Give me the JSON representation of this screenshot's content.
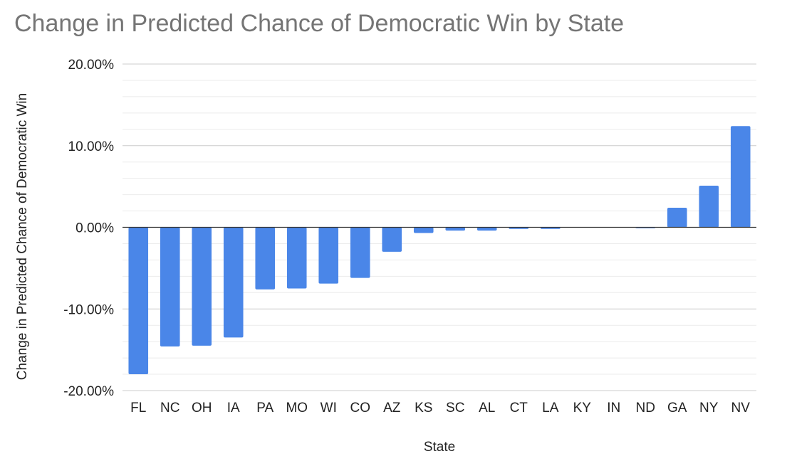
{
  "chart_data": {
    "type": "bar",
    "title": "Change in Predicted Chance of Democratic Win by State",
    "xlabel": "State",
    "ylabel": "Change in Predicted Chance of Democratic Win",
    "ylim": [
      -20,
      20
    ],
    "y_tick_values": [
      20,
      10,
      0,
      -10,
      -20
    ],
    "y_tick_labels": [
      "20.00%",
      "10.00%",
      "0.00%",
      "-10.00%",
      "-20.00%"
    ],
    "minor_gridlines": true,
    "grid": true,
    "legend": "none",
    "bar_color": "#4a86e8",
    "categories": [
      "FL",
      "NC",
      "OH",
      "IA",
      "PA",
      "MO",
      "WI",
      "CO",
      "AZ",
      "KS",
      "SC",
      "AL",
      "CT",
      "LA",
      "KY",
      "IN",
      "ND",
      "GA",
      "NY",
      "NV"
    ],
    "values": [
      -18.0,
      -14.6,
      -14.5,
      -13.5,
      -7.6,
      -7.5,
      -6.9,
      -6.2,
      -3.0,
      -0.7,
      -0.4,
      -0.4,
      -0.2,
      -0.2,
      0.0,
      0.0,
      -0.1,
      2.4,
      5.1,
      12.4
    ]
  }
}
